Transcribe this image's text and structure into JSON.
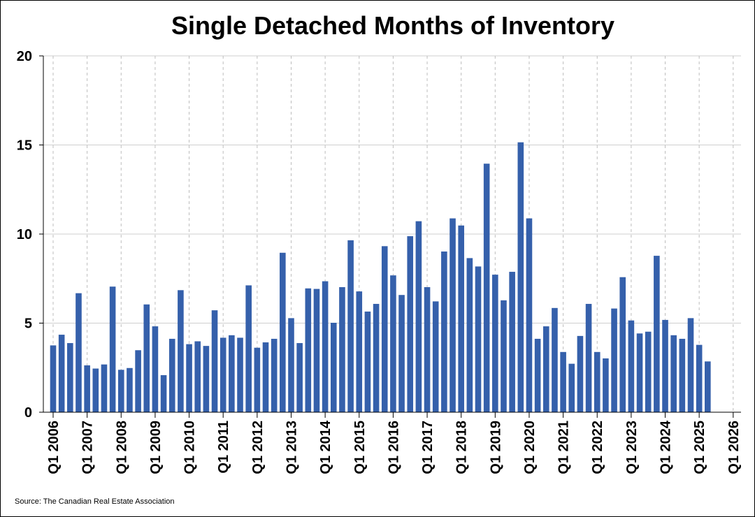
{
  "colors": {
    "bar": "#3560AB",
    "grid": "#CFCFCF",
    "vgrid": "#BDBDBD",
    "axis": "#000000"
  },
  "chart_data": {
    "type": "bar",
    "title": "Single Detached Months of Inventory",
    "source": "Source: The Canadian Real Estate Association",
    "xlabel": "",
    "ylabel": "",
    "ylim": [
      0,
      20
    ],
    "y_ticks": [
      0,
      5,
      10,
      15,
      20
    ],
    "x_ticks": [
      "Q1 2006",
      "Q1 2007",
      "Q1 2008",
      "Q1 2009",
      "Q1 2010",
      "Q1 2011",
      "Q1 2012",
      "Q1 2013",
      "Q1 2014",
      "Q1 2015",
      "Q1 2016",
      "Q1 2017",
      "Q1 2018",
      "Q1 2019",
      "Q1 2020",
      "Q1 2021",
      "Q1 2022",
      "Q1 2023",
      "Q1 2024",
      "Q1 2025",
      "Q1 2026"
    ],
    "grid": true,
    "start": "Q1 2006",
    "categories": [
      "Q1 2006",
      "Q2 2006",
      "Q3 2006",
      "Q4 2006",
      "Q1 2007",
      "Q2 2007",
      "Q3 2007",
      "Q4 2007",
      "Q1 2008",
      "Q2 2008",
      "Q3 2008",
      "Q4 2008",
      "Q1 2009",
      "Q2 2009",
      "Q3 2009",
      "Q4 2009",
      "Q1 2010",
      "Q2 2010",
      "Q3 2010",
      "Q4 2010",
      "Q1 2011",
      "Q2 2011",
      "Q3 2011",
      "Q4 2011",
      "Q1 2012",
      "Q2 2012",
      "Q3 2012",
      "Q4 2012",
      "Q1 2013",
      "Q2 2013",
      "Q3 2013",
      "Q4 2013",
      "Q1 2014",
      "Q2 2014",
      "Q3 2014",
      "Q4 2014",
      "Q1 2015",
      "Q2 2015",
      "Q3 2015",
      "Q4 2015",
      "Q1 2016",
      "Q2 2016",
      "Q3 2016",
      "Q4 2016",
      "Q1 2017",
      "Q2 2017",
      "Q3 2017",
      "Q4 2017",
      "Q1 2018",
      "Q2 2018",
      "Q3 2018",
      "Q4 2018",
      "Q1 2019",
      "Q2 2019",
      "Q3 2019",
      "Q4 2019",
      "Q1 2020",
      "Q2 2020",
      "Q3 2020",
      "Q4 2020",
      "Q1 2021",
      "Q2 2021",
      "Q3 2021",
      "Q4 2021",
      "Q1 2022",
      "Q2 2022",
      "Q3 2022",
      "Q4 2022",
      "Q1 2023",
      "Q2 2023",
      "Q3 2023",
      "Q4 2023",
      "Q1 2024",
      "Q2 2024",
      "Q3 2024",
      "Q4 2024",
      "Q1 2025",
      "Q2 2025"
    ],
    "values": [
      3.75,
      4.35,
      3.88,
      6.68,
      2.63,
      2.45,
      2.68,
      7.05,
      2.38,
      2.48,
      3.48,
      6.05,
      4.82,
      2.08,
      4.12,
      6.85,
      3.82,
      3.98,
      3.72,
      5.72,
      4.18,
      4.32,
      4.18,
      7.12,
      3.62,
      3.92,
      4.12,
      8.95,
      5.28,
      3.88,
      6.95,
      6.92,
      7.35,
      5.02,
      7.02,
      9.65,
      6.78,
      5.65,
      6.08,
      9.32,
      7.68,
      6.58,
      9.88,
      10.72,
      7.02,
      6.22,
      9.02,
      10.88,
      10.48,
      8.65,
      8.18,
      13.95,
      7.72,
      6.28,
      7.88,
      15.15,
      10.88,
      4.12,
      4.82,
      5.85,
      3.38,
      2.72,
      4.28,
      6.08,
      3.38,
      3.02,
      5.82,
      7.58,
      5.15,
      4.42,
      4.52,
      8.78,
      5.18,
      4.32,
      4.12,
      5.28,
      3.78,
      2.85
    ]
  }
}
